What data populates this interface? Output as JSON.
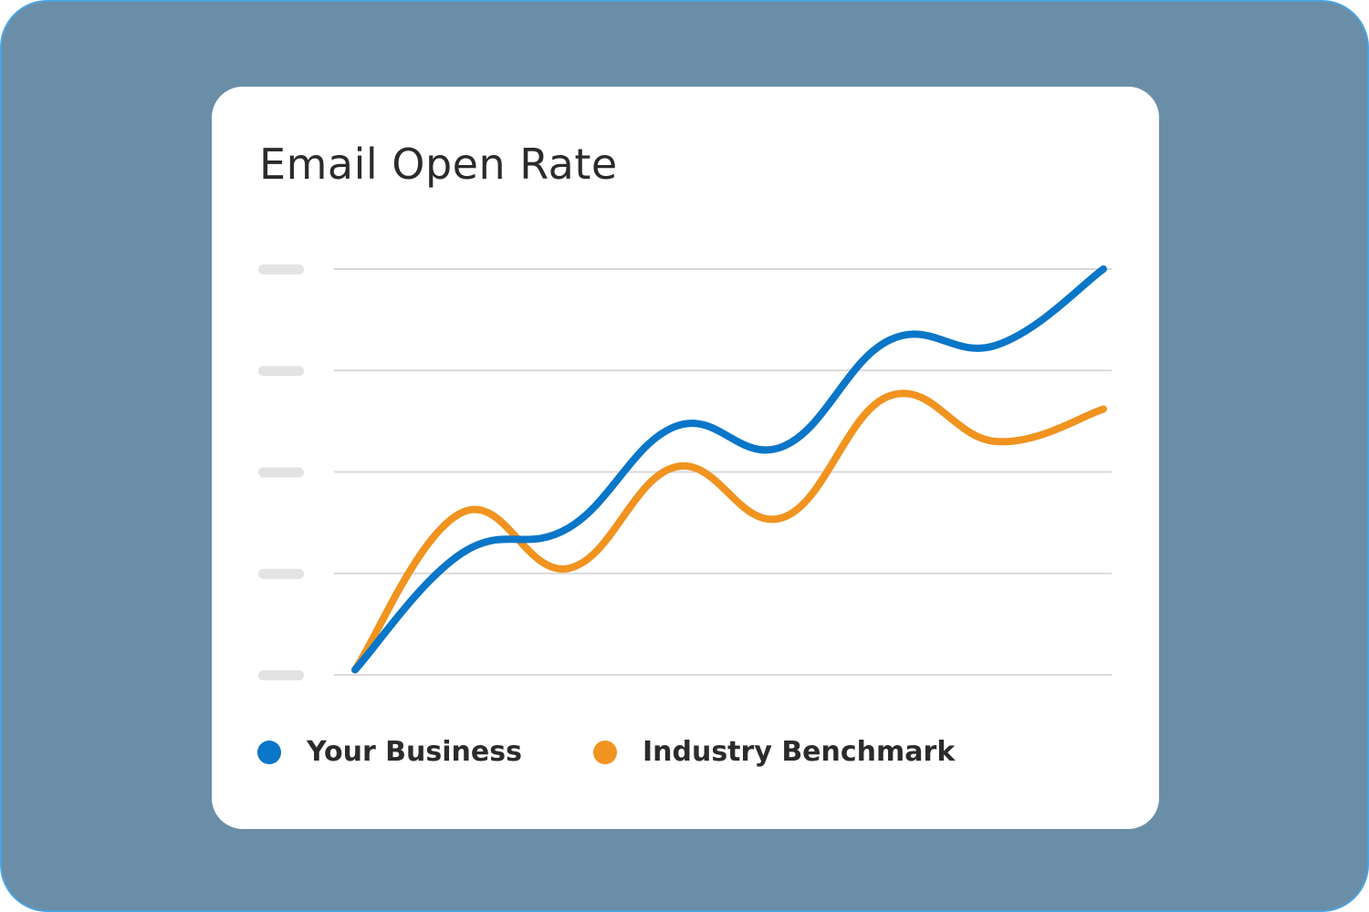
{
  "chart_data": {
    "type": "line",
    "title": "Email Open Rate",
    "xlabel": "",
    "ylabel": "",
    "y_ticks": 5,
    "x_count": 8,
    "ylim": [
      0,
      4
    ],
    "grid": true,
    "legend_position": "bottom-left",
    "series": [
      {
        "name": "Your Business",
        "color": "#0a76c8",
        "values": [
          0.05,
          1.2,
          1.45,
          2.45,
          2.25,
          3.3,
          3.25,
          4.0
        ]
      },
      {
        "name": "Industry Benchmark",
        "color": "#f0931f",
        "values": [
          0.05,
          1.6,
          1.05,
          2.05,
          1.55,
          2.75,
          2.3,
          2.62
        ]
      }
    ]
  },
  "colors": {
    "background": "#6a8ea8",
    "card": "#ffffff",
    "grid": "#d9d9d9",
    "tick_placeholder": "#e3e3e3"
  }
}
